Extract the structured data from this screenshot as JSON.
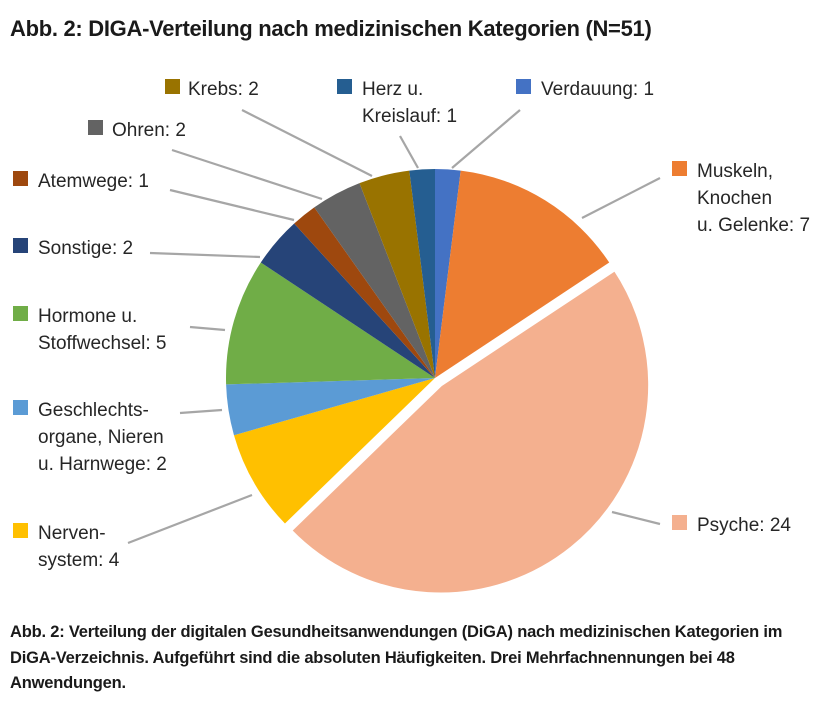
{
  "title": "Abb. 2: DIGA-Verteilung nach medizinischen Kategorien (N=51)",
  "caption": "Abb. 2: Verteilung der digitalen Gesundheitsanwendungen (DiGA) nach medizinischen Kategorien im DiGA-Verzeichnis. Aufgeführt sind die absoluten Häufigkeiten. Drei Mehrfachnennungen bei 48 Anwendungen.",
  "chart_data": {
    "type": "pie",
    "title": "Abb. 2: DIGA-Verteilung nach medizinischen Kategorien (N=51)",
    "start": "12 o'clock, clockwise",
    "exploded": [
      "Psyche"
    ],
    "slices": [
      {
        "label": "Verdauung",
        "value": 1,
        "color": "#4472C4",
        "text": [
          "Verdauung: 1"
        ]
      },
      {
        "label": "Muskeln, Knochen u. Gelenke",
        "value": 7,
        "color": "#ED7D31",
        "text": [
          "Muskeln,",
          "Knochen",
          "u. Gelenke: 7"
        ]
      },
      {
        "label": "Psyche",
        "value": 24,
        "color": "#F4B08F",
        "text": [
          "Psyche: 24"
        ]
      },
      {
        "label": "Nervensystem",
        "value": 4,
        "color": "#FFC000",
        "text": [
          "Nerven-",
          "system: 4"
        ]
      },
      {
        "label": "Geschlechtsorgane, Nieren u. Harnwege",
        "value": 2,
        "color": "#5B9BD5",
        "text": [
          "Geschlechts-",
          "organe, Nieren",
          "u. Harnwege: 2"
        ]
      },
      {
        "label": "Hormone u. Stoffwechsel",
        "value": 5,
        "color": "#70AD47",
        "text": [
          "Hormone u.",
          "Stoffwechsel: 5"
        ]
      },
      {
        "label": "Sonstige",
        "value": 2,
        "color": "#264478",
        "text": [
          "Sonstige: 2"
        ]
      },
      {
        "label": "Atemwege",
        "value": 1,
        "color": "#9E480E",
        "text": [
          "Atemwege: 1"
        ]
      },
      {
        "label": "Ohren",
        "value": 2,
        "color": "#636363",
        "text": [
          "Ohren: 2"
        ]
      },
      {
        "label": "Krebs",
        "value": 2,
        "color": "#997300",
        "text": [
          "Krebs: 2"
        ]
      },
      {
        "label": "Herz u. Kreislauf",
        "value": 1,
        "color": "#255E91",
        "text": [
          "Herz u.",
          "Kreislauf: 1"
        ]
      }
    ]
  }
}
